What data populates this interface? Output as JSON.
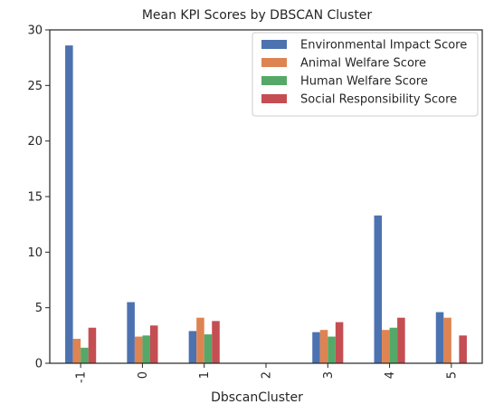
{
  "chart_data": {
    "type": "bar",
    "title": "Mean KPI Scores by DBSCAN Cluster",
    "xlabel": "DbscanCluster",
    "ylabel": "",
    "categories": [
      "-1",
      "0",
      "1",
      "2",
      "3",
      "4",
      "5"
    ],
    "ylim": [
      0,
      30
    ],
    "yticks": [
      0,
      5,
      10,
      15,
      20,
      25,
      30
    ],
    "grid": false,
    "legend_position": "top-right",
    "series": [
      {
        "name": "Environmental Impact Score",
        "color": "#4c72b0",
        "values": [
          28.6,
          5.5,
          2.9,
          0,
          2.8,
          13.3,
          4.6
        ]
      },
      {
        "name": "Animal Welfare Score",
        "color": "#dd8452",
        "values": [
          2.2,
          2.4,
          4.1,
          0,
          3.0,
          3.0,
          4.1
        ]
      },
      {
        "name": "Human Welfare Score",
        "color": "#55a868",
        "values": [
          1.4,
          2.5,
          2.6,
          0,
          2.4,
          3.2,
          0
        ]
      },
      {
        "name": "Social Responsibility Score",
        "color": "#c44e52",
        "values": [
          3.2,
          3.4,
          3.8,
          0,
          3.7,
          4.1,
          2.5
        ]
      }
    ]
  }
}
